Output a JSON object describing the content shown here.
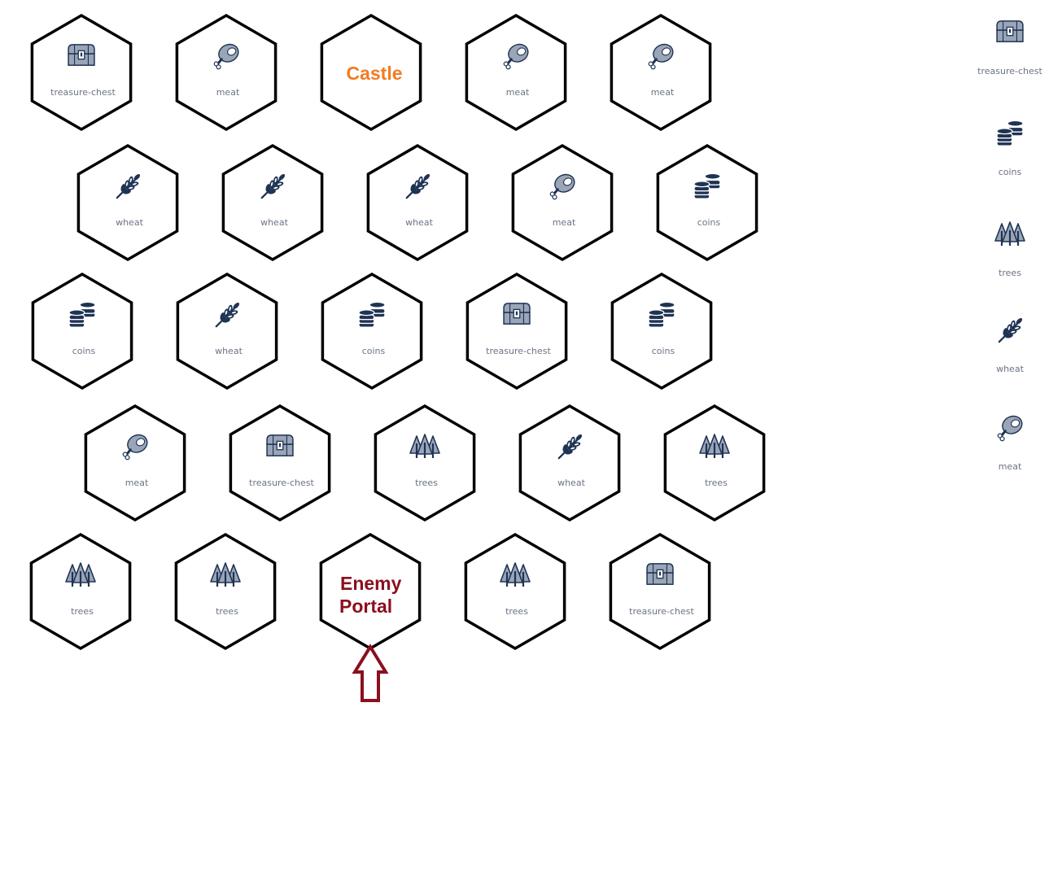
{
  "colors": {
    "icon_dark": "#1f3354",
    "icon_gray": "#9aa6b8",
    "label": "#6b7385",
    "castle": "#f07c24",
    "enemy": "#8b0f1e",
    "hex_stroke": "#000000"
  },
  "board": {
    "rows": [
      [
        {
          "type": "resource",
          "icon": "treasure-chest-icon",
          "label": "treasure-chest"
        },
        {
          "type": "resource",
          "icon": "meat-icon",
          "label": "meat"
        },
        {
          "type": "castle",
          "label": "Castle"
        },
        {
          "type": "resource",
          "icon": "meat-icon",
          "label": "meat"
        },
        {
          "type": "resource",
          "icon": "meat-icon",
          "label": "meat"
        }
      ],
      [
        {
          "type": "resource",
          "icon": "wheat-icon",
          "label": "wheat"
        },
        {
          "type": "resource",
          "icon": "wheat-icon",
          "label": "wheat"
        },
        {
          "type": "resource",
          "icon": "wheat-icon",
          "label": "wheat"
        },
        {
          "type": "resource",
          "icon": "meat-icon",
          "label": "meat"
        },
        {
          "type": "resource",
          "icon": "coins-icon",
          "label": "coins"
        }
      ],
      [
        {
          "type": "resource",
          "icon": "coins-icon",
          "label": "coins"
        },
        {
          "type": "resource",
          "icon": "wheat-icon",
          "label": "wheat"
        },
        {
          "type": "resource",
          "icon": "coins-icon",
          "label": "coins"
        },
        {
          "type": "resource",
          "icon": "treasure-chest-icon",
          "label": "treasure-chest"
        },
        {
          "type": "resource",
          "icon": "coins-icon",
          "label": "coins"
        }
      ],
      [
        {
          "type": "resource",
          "icon": "meat-icon",
          "label": "meat"
        },
        {
          "type": "resource",
          "icon": "treasure-chest-icon",
          "label": "treasure-chest"
        },
        {
          "type": "resource",
          "icon": "trees-icon",
          "label": "trees"
        },
        {
          "type": "resource",
          "icon": "wheat-icon",
          "label": "wheat"
        },
        {
          "type": "resource",
          "icon": "trees-icon",
          "label": "trees"
        }
      ],
      [
        {
          "type": "resource",
          "icon": "trees-icon",
          "label": "trees"
        },
        {
          "type": "resource",
          "icon": "trees-icon",
          "label": "trees"
        },
        {
          "type": "enemy-portal",
          "label_lines": [
            "Enemy",
            "Portal"
          ]
        },
        {
          "type": "resource",
          "icon": "trees-icon",
          "label": "trees"
        },
        {
          "type": "resource",
          "icon": "treasure-chest-icon",
          "label": "treasure-chest"
        }
      ]
    ]
  },
  "legend": [
    {
      "icon": "treasure-chest-icon",
      "label": "treasure-chest"
    },
    {
      "icon": "coins-icon",
      "label": "coins"
    },
    {
      "icon": "trees-icon",
      "label": "trees"
    },
    {
      "icon": "wheat-icon",
      "label": "wheat"
    },
    {
      "icon": "meat-icon",
      "label": "meat"
    }
  ]
}
